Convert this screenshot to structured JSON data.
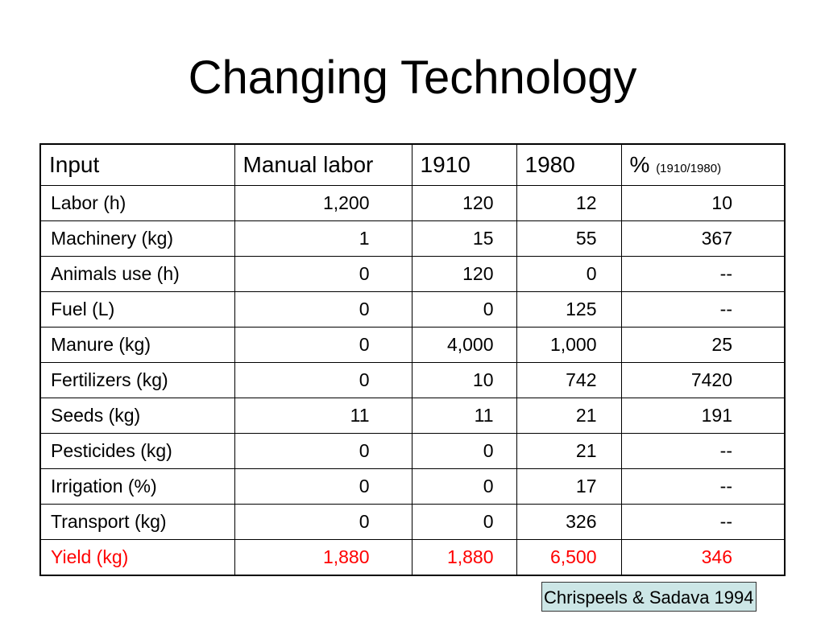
{
  "title": "Changing Technology",
  "table": {
    "headers": {
      "input": "Input",
      "manual": "Manual labor",
      "y1910": "1910",
      "y1980": "1980",
      "pct_symbol": "%",
      "pct_note": "(1910/1980)"
    },
    "rows": [
      {
        "input": "Labor (h)",
        "manual": "1,200",
        "y1910": "120",
        "y1980": "12",
        "pct": "10"
      },
      {
        "input": "Machinery (kg)",
        "manual": "1",
        "y1910": "15",
        "y1980": "55",
        "pct": "367"
      },
      {
        "input": "Animals use (h)",
        "manual": "0",
        "y1910": "120",
        "y1980": "0",
        "pct": "--"
      },
      {
        "input": "Fuel (L)",
        "manual": "0",
        "y1910": "0",
        "y1980": "125",
        "pct": "--"
      },
      {
        "input": "Manure (kg)",
        "manual": "0",
        "y1910": "4,000",
        "y1980": "1,000",
        "pct": "25"
      },
      {
        "input": "Fertilizers (kg)",
        "manual": "0",
        "y1910": "10",
        "y1980": "742",
        "pct": "7420"
      },
      {
        "input": "Seeds (kg)",
        "manual": "11",
        "y1910": "11",
        "y1980": "21",
        "pct": "191"
      },
      {
        "input": "Pesticides (kg)",
        "manual": "0",
        "y1910": "0",
        "y1980": "21",
        "pct": "--"
      },
      {
        "input": "Irrigation (%)",
        "manual": "0",
        "y1910": "0",
        "y1980": "17",
        "pct": "--"
      },
      {
        "input": "Transport (kg)",
        "manual": "0",
        "y1910": "0",
        "y1980": "326",
        "pct": "--"
      }
    ],
    "yield": {
      "input": "Yield (kg)",
      "manual": "1,880",
      "y1910": "1,880",
      "y1980": "6,500",
      "pct": "346"
    }
  },
  "citation": "Chrispeels & Sadava 1994",
  "colors": {
    "highlight_text": "#ff0000",
    "citation_background": "#cce6e6"
  }
}
